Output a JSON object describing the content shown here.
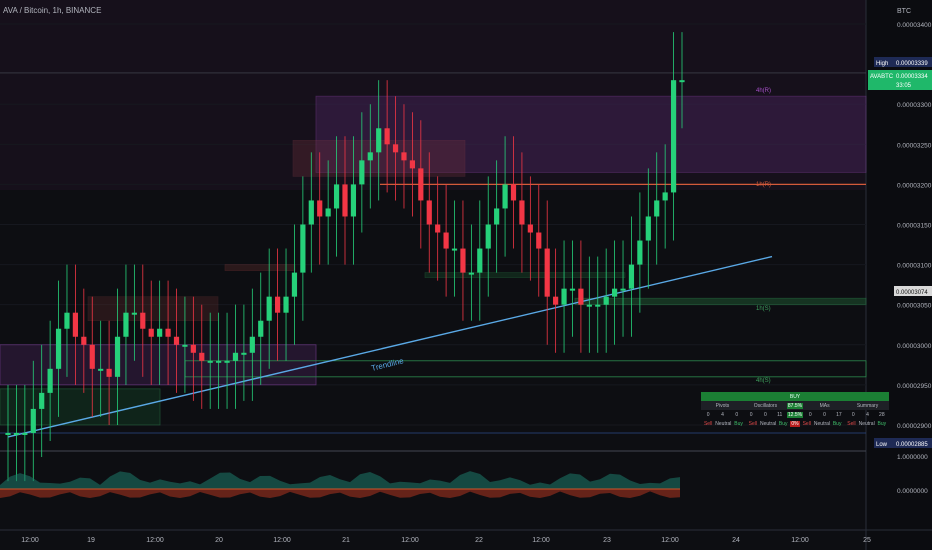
{
  "header": {
    "title": "AVA / Bitcoin, 1h, BINANCE"
  },
  "axis": {
    "currency": "BTC",
    "ticks": [
      "0.00003400",
      "0.00003300",
      "0.00003250",
      "0.00003200",
      "0.00003150",
      "0.00003100",
      "0.00003050",
      "0.00003000",
      "0.00002950",
      "0.00002900"
    ],
    "high_label": "High",
    "high_value": "0.00003339",
    "symbol": "AVABTC",
    "last_value": "0.00003334",
    "countdown": "33:05",
    "mid_value": "0.00003074",
    "low_label": "Low",
    "low_value": "0.00002885",
    "osc_ticks": [
      "1.0000000",
      "0.0000000"
    ],
    "x_ticks": [
      "12:00",
      "19",
      "12:00",
      "20",
      "12:00",
      "21",
      "12:00",
      "22",
      "12:00",
      "23",
      "12:00",
      "24",
      "12:00",
      "25"
    ]
  },
  "zones": {
    "upper4": "4h(R)",
    "upper1": "1h(R)",
    "lower1": "1h(S)",
    "lower4": "4h(S)"
  },
  "trendline_label": "Trendline",
  "technicals": {
    "signal": "BUY",
    "groups": [
      {
        "name": "Pivots",
        "counts": [
          "0",
          "4",
          "0"
        ],
        "pct": ""
      },
      {
        "name": "Oscillators",
        "counts": [
          "0",
          "0",
          "11"
        ],
        "pct": "87.5%"
      },
      {
        "name": "MAs",
        "counts": [
          "0",
          "0",
          "17"
        ],
        "pct": "12.5%"
      },
      {
        "name": "Summary",
        "counts": [
          "0",
          "4",
          "28"
        ],
        "pct": ""
      }
    ],
    "sub_pct": "0%",
    "labels": [
      "Sell",
      "Neutral",
      "Buy"
    ]
  },
  "colors": {
    "up": "#26d17a",
    "down": "#f23645",
    "bg": "#0d0e12",
    "trend": "#5aa9e6",
    "purple": "#a64fc8",
    "green": "#2c8a4e",
    "orange": "#d45a3a"
  },
  "chart_data": {
    "type": "candlestick",
    "title": "AVA / Bitcoin, 1h, BINANCE",
    "y_unit": "BTC",
    "ylim": [
      2.87e-05,
      3.43e-05
    ],
    "trendline": {
      "from": [
        "18 06:00",
        2.885e-05
      ],
      "to": [
        "23 16:00",
        3.108e-05
      ]
    },
    "high": 3.339e-05,
    "low": 2.885e-05,
    "last": 3.334e-05,
    "closes": [
      2.89e-05,
      2.89e-05,
      2.89e-05,
      2.92e-05,
      2.94e-05,
      2.97e-05,
      3.02e-05,
      3.04e-05,
      3.01e-05,
      3e-05,
      2.97e-05,
      2.97e-05,
      2.96e-05,
      3.01e-05,
      3.04e-05,
      3.04e-05,
      3.02e-05,
      3.01e-05,
      3.02e-05,
      3.01e-05,
      3e-05,
      3e-05,
      2.99e-05,
      2.98e-05,
      2.98e-05,
      2.98e-05,
      2.98e-05,
      2.99e-05,
      2.99e-05,
      3.01e-05,
      3.03e-05,
      3.06e-05,
      3.04e-05,
      3.06e-05,
      3.09e-05,
      3.15e-05,
      3.18e-05,
      3.16e-05,
      3.17e-05,
      3.2e-05,
      3.16e-05,
      3.2e-05,
      3.23e-05,
      3.24e-05,
      3.27e-05,
      3.25e-05,
      3.24e-05,
      3.23e-05,
      3.22e-05,
      3.18e-05,
      3.15e-05,
      3.14e-05,
      3.12e-05,
      3.12e-05,
      3.09e-05,
      3.09e-05,
      3.12e-05,
      3.15e-05,
      3.17e-05,
      3.2e-05,
      3.18e-05,
      3.15e-05,
      3.14e-05,
      3.12e-05,
      3.06e-05,
      3.05e-05,
      3.07e-05,
      3.07e-05,
      3.05e-05,
      3.05e-05,
      3.05e-05,
      3.06e-05,
      3.07e-05,
      3.07e-05,
      3.1e-05,
      3.13e-05,
      3.16e-05,
      3.18e-05,
      3.19e-05,
      3.33e-05,
      3.33e-05
    ]
  }
}
